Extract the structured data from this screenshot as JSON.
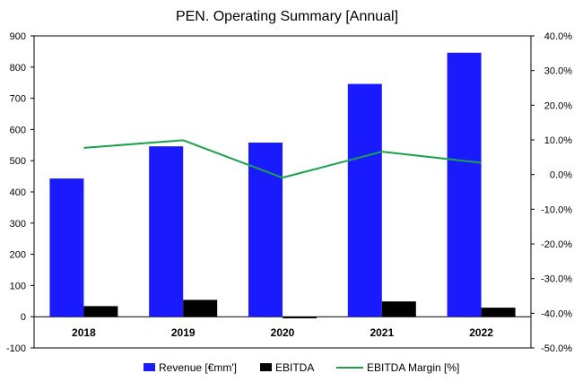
{
  "chart_data": {
    "type": "bar",
    "title": "PEN. Operating Summary [Annual]",
    "categories": [
      "2018",
      "2019",
      "2020",
      "2021",
      "2022"
    ],
    "series": [
      {
        "name": "Revenue [€mm']",
        "kind": "bar",
        "axis": "left",
        "color": "#1a1aff",
        "values": [
          443,
          546,
          558,
          746,
          846
        ]
      },
      {
        "name": "EBITDA",
        "kind": "bar",
        "axis": "left",
        "color": "#000000",
        "values": [
          34,
          54,
          -5,
          49,
          29
        ]
      },
      {
        "name": "EBITDA Margin [%]",
        "kind": "line",
        "axis": "right",
        "color": "#1aa34a",
        "values": [
          7.7,
          9.9,
          -0.9,
          6.6,
          3.4
        ]
      }
    ],
    "y_left": {
      "min": -100,
      "max": 900,
      "step": 100,
      "tick_labels": [
        "-100",
        "0",
        "100",
        "200",
        "300",
        "400",
        "500",
        "600",
        "700",
        "800",
        "900"
      ]
    },
    "y_right": {
      "min": -50,
      "max": 40,
      "step": 10,
      "tick_labels": [
        "-50.0%",
        "-40.0%",
        "-30.0%",
        "-20.0%",
        "-10.0%",
        "0.0%",
        "10.0%",
        "20.0%",
        "30.0%",
        "40.0%"
      ]
    },
    "grid": false,
    "legend_position": "bottom"
  }
}
